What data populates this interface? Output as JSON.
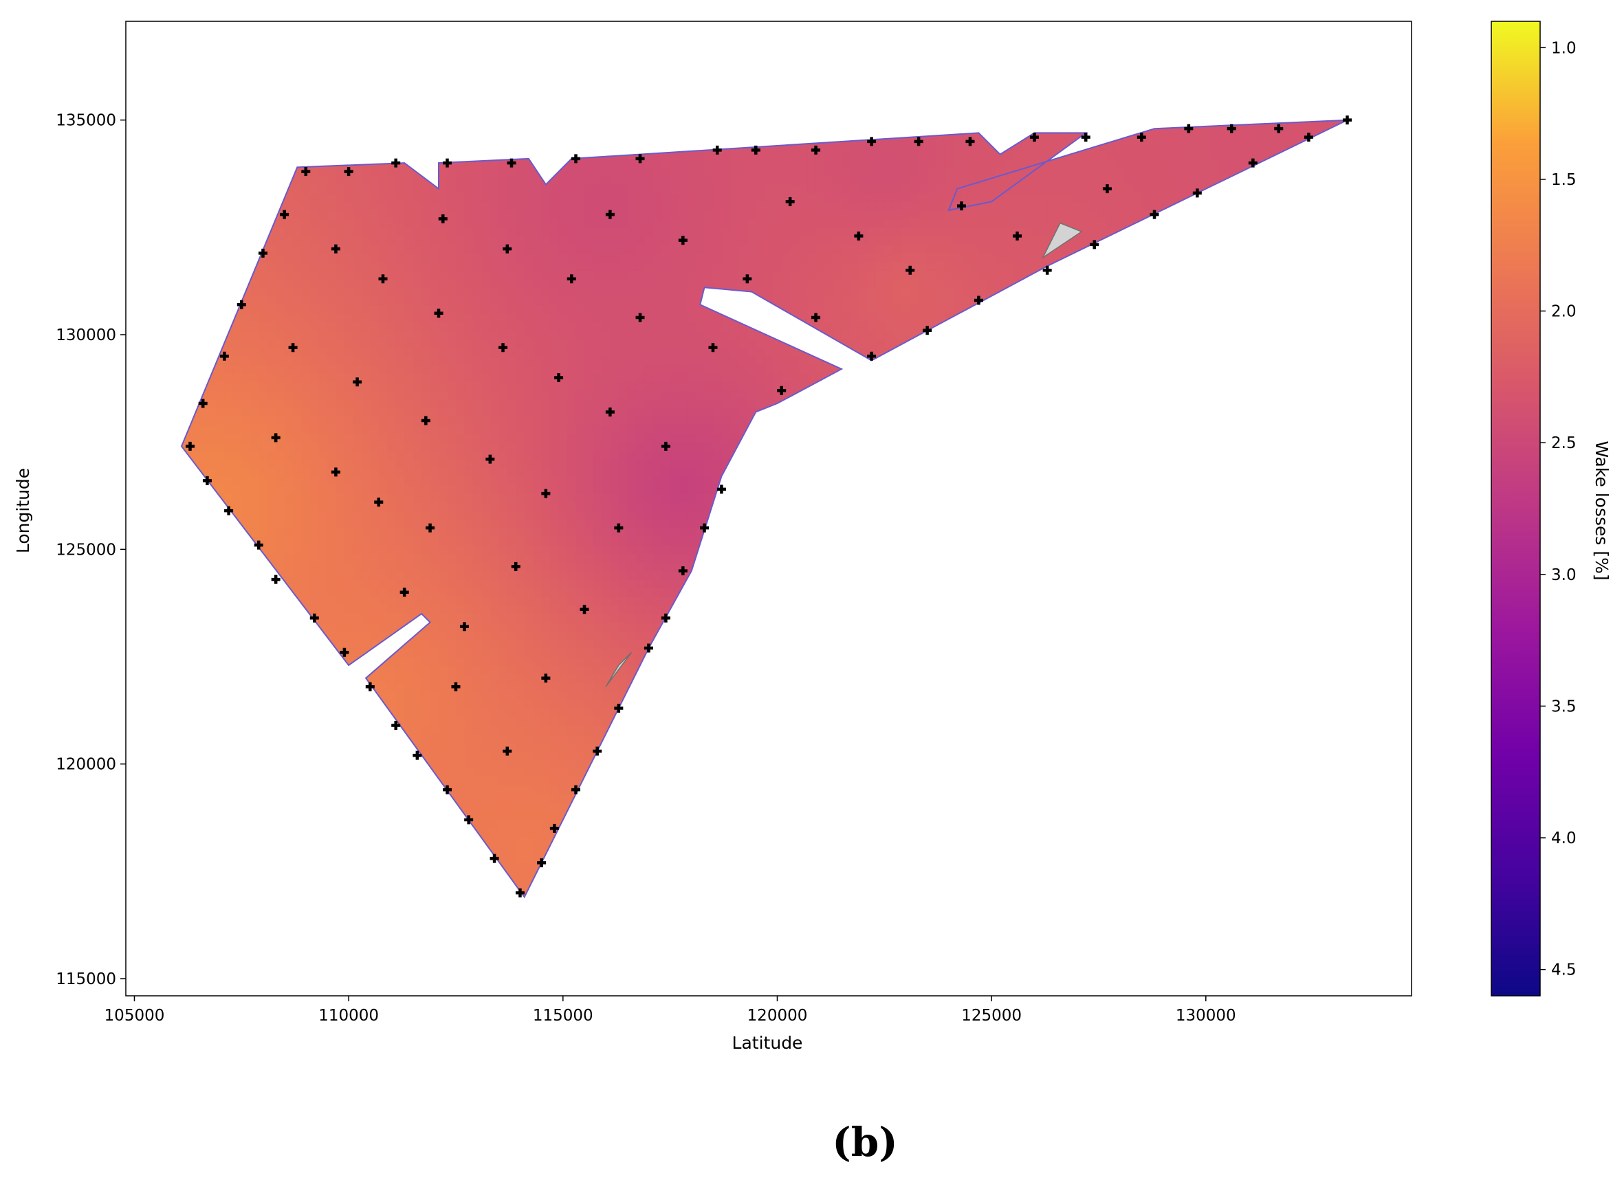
{
  "chart_data": {
    "type": "heatmap",
    "xlabel": "Latitude",
    "ylabel": "Longitude",
    "x_ticks": [
      105000,
      110000,
      115000,
      120000,
      125000,
      130000
    ],
    "y_ticks": [
      115000,
      120000,
      125000,
      130000,
      135000
    ],
    "xlim": [
      104800,
      134800
    ],
    "ylim": [
      114600,
      137300
    ],
    "colorbar": {
      "label": "Wake losses [%]",
      "colormap": "plasma",
      "reversed": true,
      "range": [
        0.9,
        4.6
      ],
      "ticks": [
        "1.0",
        "1.5",
        "2.0",
        "2.5",
        "3.0",
        "3.5",
        "4.0",
        "4.5"
      ]
    },
    "boundary": [
      [
        106100,
        127400
      ],
      [
        108800,
        133900
      ],
      [
        111300,
        134000
      ],
      [
        112100,
        133400
      ],
      [
        112100,
        134000
      ],
      [
        114200,
        134100
      ],
      [
        114600,
        133500
      ],
      [
        115200,
        134100
      ],
      [
        124700,
        134700
      ],
      [
        125200,
        134200
      ],
      [
        126000,
        134700
      ],
      [
        127200,
        134700
      ],
      [
        125000,
        133100
      ],
      [
        124000,
        132900
      ],
      [
        124200,
        133400
      ],
      [
        128800,
        134800
      ],
      [
        133300,
        135000
      ],
      [
        126300,
        131600
      ],
      [
        122200,
        129400
      ],
      [
        119400,
        131000
      ],
      [
        118300,
        131100
      ],
      [
        118200,
        130700
      ],
      [
        121500,
        129200
      ],
      [
        120000,
        128400
      ],
      [
        119500,
        128200
      ],
      [
        118700,
        126700
      ],
      [
        118000,
        124500
      ],
      [
        117000,
        122700
      ],
      [
        114100,
        116900
      ],
      [
        110400,
        122000
      ],
      [
        111900,
        123300
      ],
      [
        111700,
        123500
      ],
      [
        110000,
        122300
      ]
    ],
    "exclusion_zones": [
      [
        [
          116300,
          122300
        ],
        [
          116600,
          122600
        ],
        [
          116000,
          121800
        ]
      ],
      [
        [
          126600,
          132600
        ],
        [
          127100,
          132400
        ],
        [
          126200,
          131800
        ]
      ]
    ],
    "gradient_stops": [
      {
        "x": 106800,
        "y": 126000,
        "value": 1.65
      },
      {
        "x": 110500,
        "y": 121500,
        "value": 1.75
      },
      {
        "x": 114100,
        "y": 118000,
        "value": 1.8
      },
      {
        "x": 117800,
        "y": 126500,
        "value": 2.6
      },
      {
        "x": 116000,
        "y": 133000,
        "value": 2.45
      },
      {
        "x": 122500,
        "y": 133800,
        "value": 2.4
      },
      {
        "x": 123000,
        "y": 131000,
        "value": 2.15
      },
      {
        "x": 131500,
        "y": 134600,
        "value": 2.35
      }
    ],
    "base_value": 2.3,
    "turbines": [
      [
        106300,
        127400
      ],
      [
        106600,
        128400
      ],
      [
        106700,
        126600
      ],
      [
        107100,
        129500
      ],
      [
        107200,
        125900
      ],
      [
        107500,
        130700
      ],
      [
        107900,
        125100
      ],
      [
        108000,
        131900
      ],
      [
        108300,
        124300
      ],
      [
        108500,
        132800
      ],
      [
        108300,
        127600
      ],
      [
        108700,
        129700
      ],
      [
        109000,
        133800
      ],
      [
        109200,
        123400
      ],
      [
        109700,
        126800
      ],
      [
        109700,
        132000
      ],
      [
        109900,
        122600
      ],
      [
        110000,
        133800
      ],
      [
        110200,
        128900
      ],
      [
        110500,
        121800
      ],
      [
        110700,
        126100
      ],
      [
        110800,
        131300
      ],
      [
        111100,
        134000
      ],
      [
        111100,
        120900
      ],
      [
        111300,
        124000
      ],
      [
        111600,
        120200
      ],
      [
        111800,
        128000
      ],
      [
        111900,
        125500
      ],
      [
        112100,
        130500
      ],
      [
        112200,
        132700
      ],
      [
        112300,
        119400
      ],
      [
        112300,
        134000
      ],
      [
        112500,
        121800
      ],
      [
        112700,
        123200
      ],
      [
        112800,
        118700
      ],
      [
        113300,
        127100
      ],
      [
        113400,
        117800
      ],
      [
        113600,
        129700
      ],
      [
        113700,
        132000
      ],
      [
        113700,
        120300
      ],
      [
        113800,
        134000
      ],
      [
        113900,
        124600
      ],
      [
        114000,
        117000
      ],
      [
        114500,
        117700
      ],
      [
        114600,
        126300
      ],
      [
        114600,
        122000
      ],
      [
        114800,
        118500
      ],
      [
        114900,
        129000
      ],
      [
        115200,
        131300
      ],
      [
        115300,
        134100
      ],
      [
        115300,
        119400
      ],
      [
        115500,
        123600
      ],
      [
        115800,
        120300
      ],
      [
        116100,
        132800
      ],
      [
        116100,
        128200
      ],
      [
        116300,
        121300
      ],
      [
        116300,
        125500
      ],
      [
        116800,
        130400
      ],
      [
        116800,
        134100
      ],
      [
        117000,
        122700
      ],
      [
        117400,
        123400
      ],
      [
        117400,
        127400
      ],
      [
        117800,
        132200
      ],
      [
        117800,
        124500
      ],
      [
        118300,
        125500
      ],
      [
        118500,
        129700
      ],
      [
        118600,
        134300
      ],
      [
        118700,
        126400
      ],
      [
        119300,
        131300
      ],
      [
        119500,
        134300
      ],
      [
        120100,
        128700
      ],
      [
        120300,
        133100
      ],
      [
        120900,
        130400
      ],
      [
        120900,
        134300
      ],
      [
        121900,
        132300
      ],
      [
        122200,
        129500
      ],
      [
        122200,
        134500
      ],
      [
        123100,
        131500
      ],
      [
        123300,
        134500
      ],
      [
        123500,
        130100
      ],
      [
        124300,
        133000
      ],
      [
        124500,
        134500
      ],
      [
        124700,
        130800
      ],
      [
        125600,
        132300
      ],
      [
        126000,
        134600
      ],
      [
        126300,
        131500
      ],
      [
        127200,
        134600
      ],
      [
        127400,
        132100
      ],
      [
        127700,
        133400
      ],
      [
        128500,
        134600
      ],
      [
        128800,
        132800
      ],
      [
        129600,
        134800
      ],
      [
        129800,
        133300
      ],
      [
        130600,
        134800
      ],
      [
        131100,
        134000
      ],
      [
        131700,
        134800
      ],
      [
        132400,
        134600
      ],
      [
        133300,
        135000
      ]
    ]
  },
  "caption": "(b)"
}
